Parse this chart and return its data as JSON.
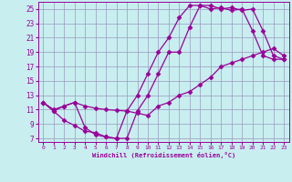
{
  "xlabel": "Windchill (Refroidissement éolien,°C)",
  "xlim": [
    -0.5,
    23.5
  ],
  "ylim": [
    6.5,
    26.0
  ],
  "xticks": [
    0,
    1,
    2,
    3,
    4,
    5,
    6,
    7,
    8,
    9,
    10,
    11,
    12,
    13,
    14,
    15,
    16,
    17,
    18,
    19,
    20,
    21,
    22,
    23
  ],
  "yticks": [
    7,
    9,
    11,
    13,
    15,
    17,
    19,
    21,
    23,
    25
  ],
  "bg_color": "#c8eef0",
  "grid_color": "#9999bb",
  "line_color": "#990099",
  "line1_x": [
    0,
    1,
    2,
    3,
    4,
    5,
    6,
    7,
    8,
    9,
    10,
    11,
    12,
    13,
    14,
    15,
    16,
    17,
    18,
    19,
    20,
    21,
    22,
    23
  ],
  "line1_y": [
    12.0,
    10.8,
    11.5,
    12.0,
    8.5,
    7.5,
    7.2,
    7.0,
    10.8,
    13.0,
    16.0,
    19.0,
    21.0,
    23.8,
    25.5,
    25.5,
    25.0,
    25.2,
    24.8,
    25.0,
    22.0,
    18.5,
    18.0,
    18.0
  ],
  "line2_x": [
    0,
    1,
    2,
    3,
    4,
    5,
    6,
    7,
    8,
    9,
    10,
    11,
    12,
    13,
    14,
    15,
    16,
    17,
    18,
    19,
    20,
    21,
    22,
    23
  ],
  "line2_y": [
    12.0,
    10.8,
    9.5,
    8.8,
    8.0,
    7.8,
    7.2,
    7.0,
    7.0,
    10.8,
    13.0,
    16.0,
    19.0,
    19.0,
    22.5,
    25.5,
    25.5,
    25.0,
    25.2,
    24.8,
    25.0,
    22.0,
    18.5,
    18.0
  ],
  "line3_x": [
    0,
    1,
    2,
    3,
    4,
    5,
    6,
    7,
    8,
    9,
    10,
    11,
    12,
    13,
    14,
    15,
    16,
    17,
    18,
    19,
    20,
    21,
    22,
    23
  ],
  "line3_y": [
    12.0,
    11.0,
    11.5,
    12.0,
    11.5,
    11.2,
    11.0,
    10.9,
    10.8,
    10.5,
    10.2,
    11.5,
    12.0,
    13.0,
    13.5,
    14.5,
    15.5,
    17.0,
    17.5,
    18.0,
    18.5,
    19.0,
    19.5,
    18.5
  ],
  "marker": "D",
  "markersize": 2.5,
  "linewidth": 0.9
}
